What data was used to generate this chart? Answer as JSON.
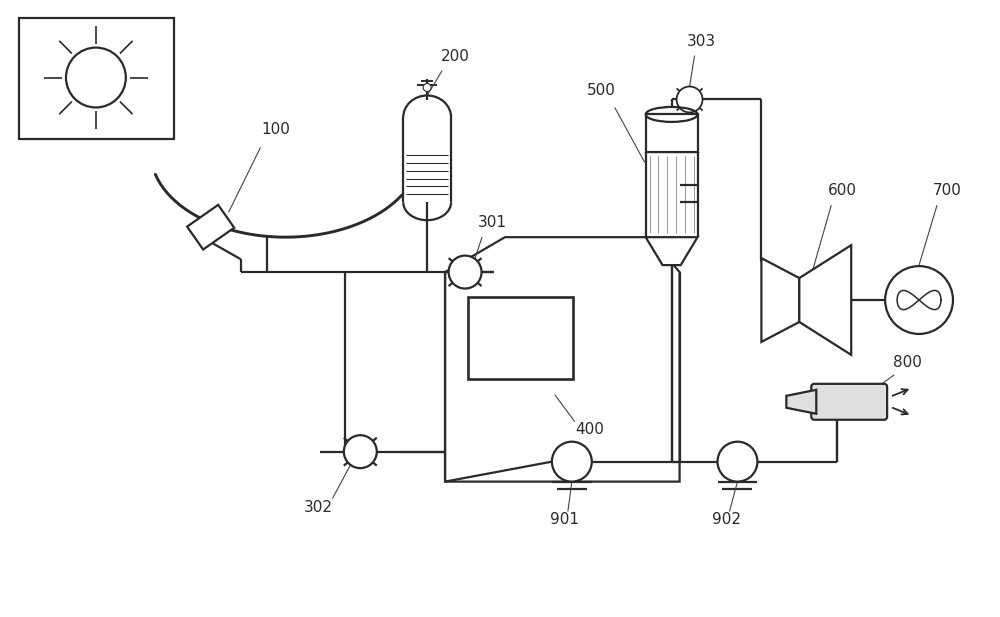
{
  "background_color": "#ffffff",
  "line_color": "#2a2a2a",
  "lw": 1.6,
  "fig_w": 10.0,
  "fig_h": 6.17,
  "xlim": [
    0,
    10
  ],
  "ylim": [
    0,
    6.17
  ]
}
